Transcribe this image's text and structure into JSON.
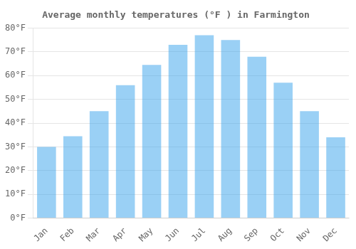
{
  "chart_data": {
    "type": "bar",
    "title": "Average monthly temperatures (°F ) in Farmington",
    "categories": [
      "Jan",
      "Feb",
      "Mar",
      "Apr",
      "May",
      "Jun",
      "Jul",
      "Aug",
      "Sep",
      "Oct",
      "Nov",
      "Dec"
    ],
    "values": [
      30,
      34.5,
      45,
      56,
      64.5,
      73,
      77,
      75,
      68,
      57,
      45,
      34
    ],
    "ylim": [
      0,
      80
    ],
    "yticks": [
      {
        "value": 0,
        "label": "0°F"
      },
      {
        "value": 10,
        "label": "10°F"
      },
      {
        "value": 20,
        "label": "20°F"
      },
      {
        "value": 30,
        "label": "30°F"
      },
      {
        "value": 40,
        "label": "40°F"
      },
      {
        "value": 50,
        "label": "50°F"
      },
      {
        "value": 60,
        "label": "60°F"
      },
      {
        "value": 70,
        "label": "70°F"
      },
      {
        "value": 80,
        "label": "80°F"
      }
    ],
    "grid": true
  }
}
